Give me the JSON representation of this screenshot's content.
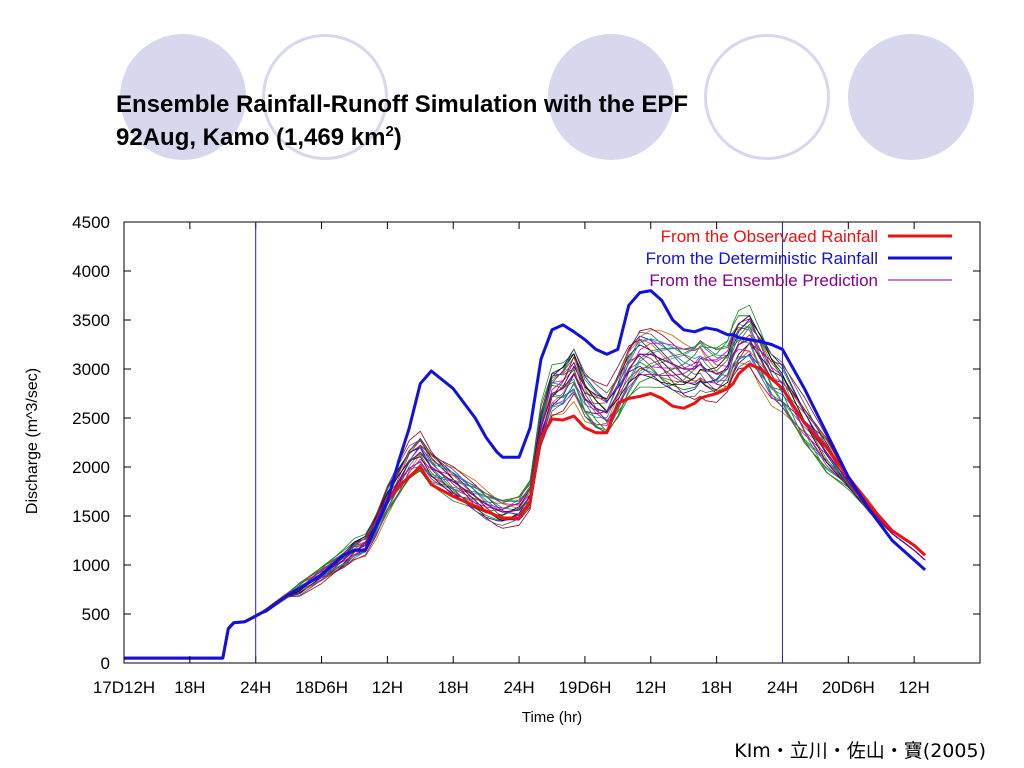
{
  "slide": {
    "title_line1": "Ensemble Rainfall-Runoff Simulation with the EPF",
    "title_line2_prefix": "92Aug, Kamo (1,469 km",
    "title_line2_sup": "2",
    "title_line2_suffix": ")",
    "citation": "KIm・立川・佐山・寶(2005)",
    "accent_color": "#d7d7ee"
  },
  "chart_data": {
    "type": "line",
    "xlabel": "Time (hr)",
    "ylabel": "Discharge (m^3/sec)",
    "ylim": [
      0,
      4500
    ],
    "xlim": [
      12,
      90
    ],
    "x_unit": "hours after 17D0H",
    "yticks": [
      0,
      500,
      1000,
      1500,
      2000,
      2500,
      3000,
      3500,
      4000,
      4500
    ],
    "xticks": [
      {
        "x": 12,
        "label": "17D12H"
      },
      {
        "x": 18,
        "label": "18H"
      },
      {
        "x": 24,
        "label": "24H"
      },
      {
        "x": 30,
        "label": "18D6H"
      },
      {
        "x": 36,
        "label": "12H"
      },
      {
        "x": 42,
        "label": "18H"
      },
      {
        "x": 48,
        "label": "24H"
      },
      {
        "x": 54,
        "label": "19D6H"
      },
      {
        "x": 60,
        "label": "12H"
      },
      {
        "x": 66,
        "label": "18H"
      },
      {
        "x": 72,
        "label": "24H"
      },
      {
        "x": 78,
        "label": "20D6H"
      },
      {
        "x": 84,
        "label": "12H"
      }
    ],
    "vertical_markers": [
      24,
      72
    ],
    "grid": false,
    "legend_position": "top-right",
    "series": [
      {
        "name": "From the Observaed Rainfall",
        "color": "#ee1111",
        "x": [
          12,
          21,
          21.5,
          22,
          23,
          24,
          25,
          26,
          27,
          28,
          30,
          32,
          33,
          34,
          35,
          36,
          37,
          38,
          39,
          40,
          42,
          44,
          45,
          46,
          46.5,
          48,
          49,
          50,
          51,
          52,
          53,
          54,
          55,
          56,
          57,
          58,
          59,
          60,
          61,
          62,
          63,
          64,
          64.5,
          65,
          66,
          67,
          67.5,
          68,
          69,
          70,
          71,
          72,
          74,
          76,
          78,
          80,
          82,
          84,
          85
        ],
        "values": [
          50,
          50,
          350,
          410,
          420,
          480,
          540,
          620,
          700,
          760,
          900,
          1100,
          1150,
          1150,
          1400,
          1650,
          1800,
          1900,
          2000,
          1820,
          1700,
          1600,
          1550,
          1500,
          1480,
          1480,
          1650,
          2300,
          2490,
          2480,
          2520,
          2400,
          2350,
          2350,
          2650,
          2700,
          2720,
          2750,
          2700,
          2620,
          2600,
          2650,
          2700,
          2720,
          2750,
          2800,
          2850,
          2950,
          3050,
          3000,
          2900,
          2800,
          2450,
          2200,
          1900,
          1600,
          1350,
          1200,
          1100
        ]
      },
      {
        "name": "From the Deterministic Rainfall",
        "color": "#1111dd",
        "x": [
          12,
          21,
          21.5,
          22,
          23,
          24,
          25,
          26,
          27,
          28,
          30,
          32,
          33,
          34,
          35,
          36,
          37,
          38,
          39,
          40,
          42,
          44,
          45,
          46,
          46.5,
          48,
          49,
          50,
          51,
          52,
          53,
          54,
          55,
          56,
          57,
          58,
          59,
          60,
          61,
          62,
          63,
          64,
          64.5,
          65,
          66,
          67,
          67.5,
          68,
          69,
          70,
          71,
          72,
          74,
          76,
          78,
          80,
          82,
          84,
          85
        ],
        "values": [
          50,
          50,
          350,
          410,
          420,
          480,
          540,
          620,
          700,
          760,
          900,
          1100,
          1150,
          1150,
          1400,
          1650,
          2050,
          2400,
          2850,
          2980,
          2800,
          2500,
          2300,
          2150,
          2100,
          2100,
          2400,
          3100,
          3400,
          3450,
          3380,
          3300,
          3200,
          3150,
          3200,
          3650,
          3780,
          3800,
          3700,
          3500,
          3400,
          3380,
          3400,
          3420,
          3400,
          3350,
          3350,
          3320,
          3300,
          3280,
          3250,
          3200,
          2800,
          2350,
          1900,
          1550,
          1250,
          1050,
          950
        ]
      },
      {
        "name": "From the Ensemble Prediction",
        "color": "#880088",
        "x": [
          12,
          21,
          21.5,
          22,
          23,
          24,
          25,
          26,
          27,
          28,
          30,
          32,
          33,
          34,
          35,
          36,
          37,
          38,
          39,
          40,
          42,
          44,
          45,
          46,
          46.5,
          48,
          49,
          50,
          51,
          52,
          53,
          54,
          55,
          56,
          57,
          58,
          59,
          60,
          61,
          62,
          63,
          64,
          64.5,
          65,
          66,
          67,
          67.5,
          68,
          69,
          70,
          71,
          72,
          74,
          76,
          78,
          80,
          82,
          84,
          85
        ],
        "values": [
          50,
          50,
          350,
          410,
          420,
          480,
          540,
          620,
          700,
          760,
          900,
          1050,
          1150,
          1200,
          1400,
          1650,
          1850,
          2050,
          2150,
          2000,
          1850,
          1700,
          1620,
          1560,
          1540,
          1560,
          1700,
          2400,
          2750,
          2800,
          2950,
          2700,
          2600,
          2550,
          2750,
          3000,
          3150,
          3150,
          3100,
          3050,
          3000,
          3000,
          3050,
          3000,
          2950,
          3000,
          3150,
          3250,
          3300,
          3100,
          2900,
          2800,
          2450,
          2150,
          1850,
          1580,
          1320,
          1150,
          1050
        ]
      }
    ]
  }
}
